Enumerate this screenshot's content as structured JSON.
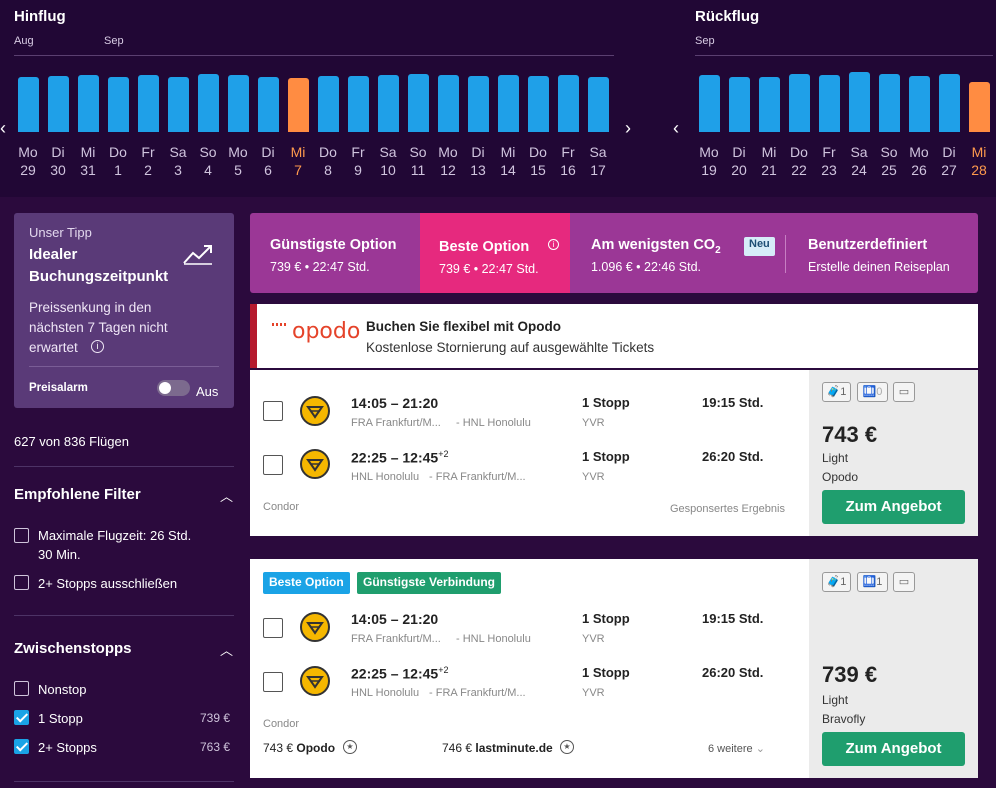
{
  "outbound": {
    "title": "Hinflug",
    "months": [
      "Aug",
      "Sep"
    ],
    "weekdays": [
      "Mo",
      "Di",
      "Mi",
      "Do",
      "Fr",
      "Sa",
      "So",
      "Mo",
      "Di",
      "Mi",
      "Do",
      "Fr",
      "Sa",
      "So",
      "Mo",
      "Di",
      "Mi",
      "Do",
      "Fr",
      "Sa"
    ],
    "days": [
      "29",
      "30",
      "31",
      "1",
      "2",
      "3",
      "4",
      "5",
      "6",
      "7",
      "8",
      "9",
      "10",
      "11",
      "12",
      "13",
      "14",
      "15",
      "16",
      "17"
    ],
    "selected_index": 9
  },
  "return": {
    "title": "Rückflug",
    "months": [
      "Sep"
    ],
    "weekdays": [
      "Mo",
      "Di",
      "Mi",
      "Do",
      "Fr",
      "Sa",
      "So",
      "Mo",
      "Di",
      "Mi"
    ],
    "days": [
      "19",
      "20",
      "21",
      "22",
      "23",
      "24",
      "25",
      "26",
      "27",
      "28"
    ],
    "selected_index": 9
  },
  "tip": {
    "kicker": "Unser Tipp",
    "title_line1": "Idealer",
    "title_line2": "Buchungszeitpunkt",
    "body_line1": "Preissenkung in den",
    "body_line2": "nächsten 7 Tagen nicht",
    "body_line3": "erwartet",
    "alarm_label": "Preisalarm",
    "alarm_state": "Aus"
  },
  "flight_count": "627 von 836 Flügen",
  "filters": {
    "title": "Empfohlene Filter",
    "max_duration_line1": "Maximale Flugzeit: 26 Std.",
    "max_duration_line2": "30 Min.",
    "exclude_stops": "2+ Stopps ausschließen"
  },
  "stops": {
    "title": "Zwischenstopps",
    "nonstop": "Nonstop",
    "one_stop": "1 Stopp",
    "one_stop_price": "739 €",
    "two_stop": "2+ Stopps",
    "two_stop_price": "763 €"
  },
  "tabs": {
    "cheapest_title": "Günstigste Option",
    "cheapest_sub": "739 € • 22:47 Std.",
    "best_title": "Beste Option",
    "best_sub": "739 € • 22:47 Std.",
    "co2_title": "Am wenigsten CO",
    "co2_sub": "1.096 € • 22:46 Std.",
    "new_badge": "Neu",
    "custom_title": "Benutzerdefiniert",
    "custom_sub": "Erstelle deinen Reiseplan"
  },
  "ad": {
    "brand": "opodo",
    "title": "Buchen Sie flexibel mit Opodo",
    "subtitle": "Kostenlose Stornierung auf ausgewählte Tickets"
  },
  "result1": {
    "out_times": "14:05 – 21:20",
    "out_route_from": "FRA Frankfurt/M...",
    "out_route_to": "HNL Honolulu",
    "out_stops": "1 Stopp",
    "out_via": "YVR",
    "out_duration": "19:15 Std.",
    "ret_times": "22:25 – 12:45",
    "ret_plus": "+2",
    "ret_route_from": "HNL Honolulu",
    "ret_route_to": "FRA Frankfurt/M...",
    "ret_stops": "1 Stopp",
    "ret_via": "YVR",
    "ret_duration": "26:20 Std.",
    "airline": "Condor",
    "sponsored": "Gesponsertes Ergebnis",
    "bag1": "1",
    "bag2": "0",
    "price": "743 €",
    "fare": "Light",
    "provider": "Opodo",
    "cta": "Zum Angebot"
  },
  "result2": {
    "badge_best": "Beste Option",
    "badge_cheapest": "Günstigste Verbindung",
    "out_times": "14:05 – 21:20",
    "out_route_from": "FRA Frankfurt/M...",
    "out_route_to": "HNL Honolulu",
    "out_stops": "1 Stopp",
    "out_via": "YVR",
    "out_duration": "19:15 Std.",
    "ret_times": "22:25 – 12:45",
    "ret_plus": "+2",
    "ret_route_from": "HNL Honolulu",
    "ret_route_to": "FRA Frankfurt/M...",
    "ret_stops": "1 Stopp",
    "ret_via": "YVR",
    "ret_duration": "26:20 Std.",
    "airline": "Condor",
    "alt1_price": "743 €",
    "alt1_name": "Opodo",
    "alt2_price": "746 €",
    "alt2_name": "lastminute.de",
    "more": "6 weitere",
    "bag1": "1",
    "bag2": "1",
    "price": "739 €",
    "fare": "Light",
    "provider": "Bravofly",
    "cta": "Zum Angebot"
  },
  "colors": {
    "bar": "#1fa0e8",
    "selected": "#ff8c42",
    "cta": "#1f9e6e",
    "tab_active": "#e6297e",
    "tab_bg": "#9b3796"
  }
}
